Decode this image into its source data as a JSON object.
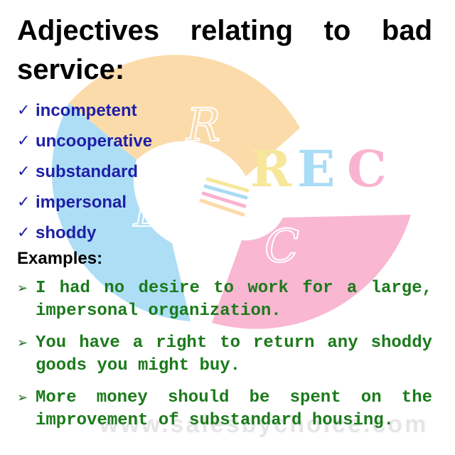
{
  "title": "Adjectives relating to bad service:",
  "adjectives": [
    "incompetent",
    "uncooperative",
    "substandard",
    "impersonal",
    "shoddy"
  ],
  "examples_heading": "Examples:",
  "examples": [
    "I had no desire to work for a large, impersonal organization.",
    "You have a right to return any shoddy goods you might buy.",
    "More money should be spent on the improvement of substandard housing."
  ],
  "watermark": {
    "logo_text": "REC",
    "segment_letters": [
      "R",
      "E",
      "C"
    ],
    "site_text": "www.salesbychoice.com",
    "colors": {
      "orange": "#fcd9a6",
      "blue": "#a9dcf5",
      "pink": "#f9b3d0",
      "yellow": "#f7e79a"
    }
  },
  "colors": {
    "title": "#000000",
    "adjectives": "#1f1fa6",
    "examples": "#1b7a1b"
  },
  "icons": {
    "adjective_bullet": "check-icon",
    "example_bullet": "arrow-icon"
  }
}
